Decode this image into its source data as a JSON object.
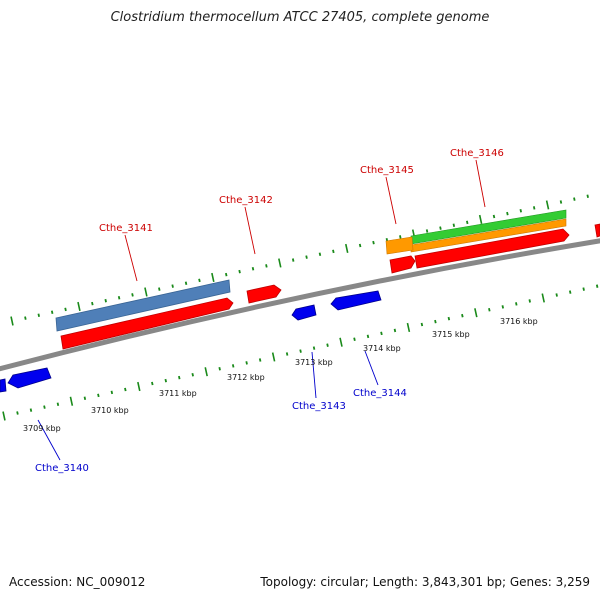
{
  "title": "Clostridium thermocellum ATCC 27405, complete genome",
  "footer": {
    "accession": "Accession: NC_009012",
    "stats": "Topology: circular; Length: 3,843,301 bp; Genes: 3,259"
  },
  "colors": {
    "forward_strand": "#ff0000",
    "reverse_strand": "#0000ee",
    "backbone": "#888888",
    "ticks": "#1a8a1a",
    "steelblue_track": "#4f7fb8",
    "green_track": "#33cc33",
    "orange_track": "#ff9900",
    "label_forward": "#cc0000",
    "label_reverse": "#0000cc"
  },
  "scale_labels": [
    "3709 kbp",
    "3710 kbp",
    "3711 kbp",
    "3712 kbp",
    "3713 kbp",
    "3714 kbp",
    "3715 kbp",
    "3716 kbp"
  ],
  "genes": {
    "forward": [
      "Cthe_3141",
      "Cthe_3142",
      "Cthe_3145",
      "Cthe_3146"
    ],
    "reverse": [
      "Cthe_3140",
      "Cthe_3143",
      "Cthe_3144"
    ]
  }
}
